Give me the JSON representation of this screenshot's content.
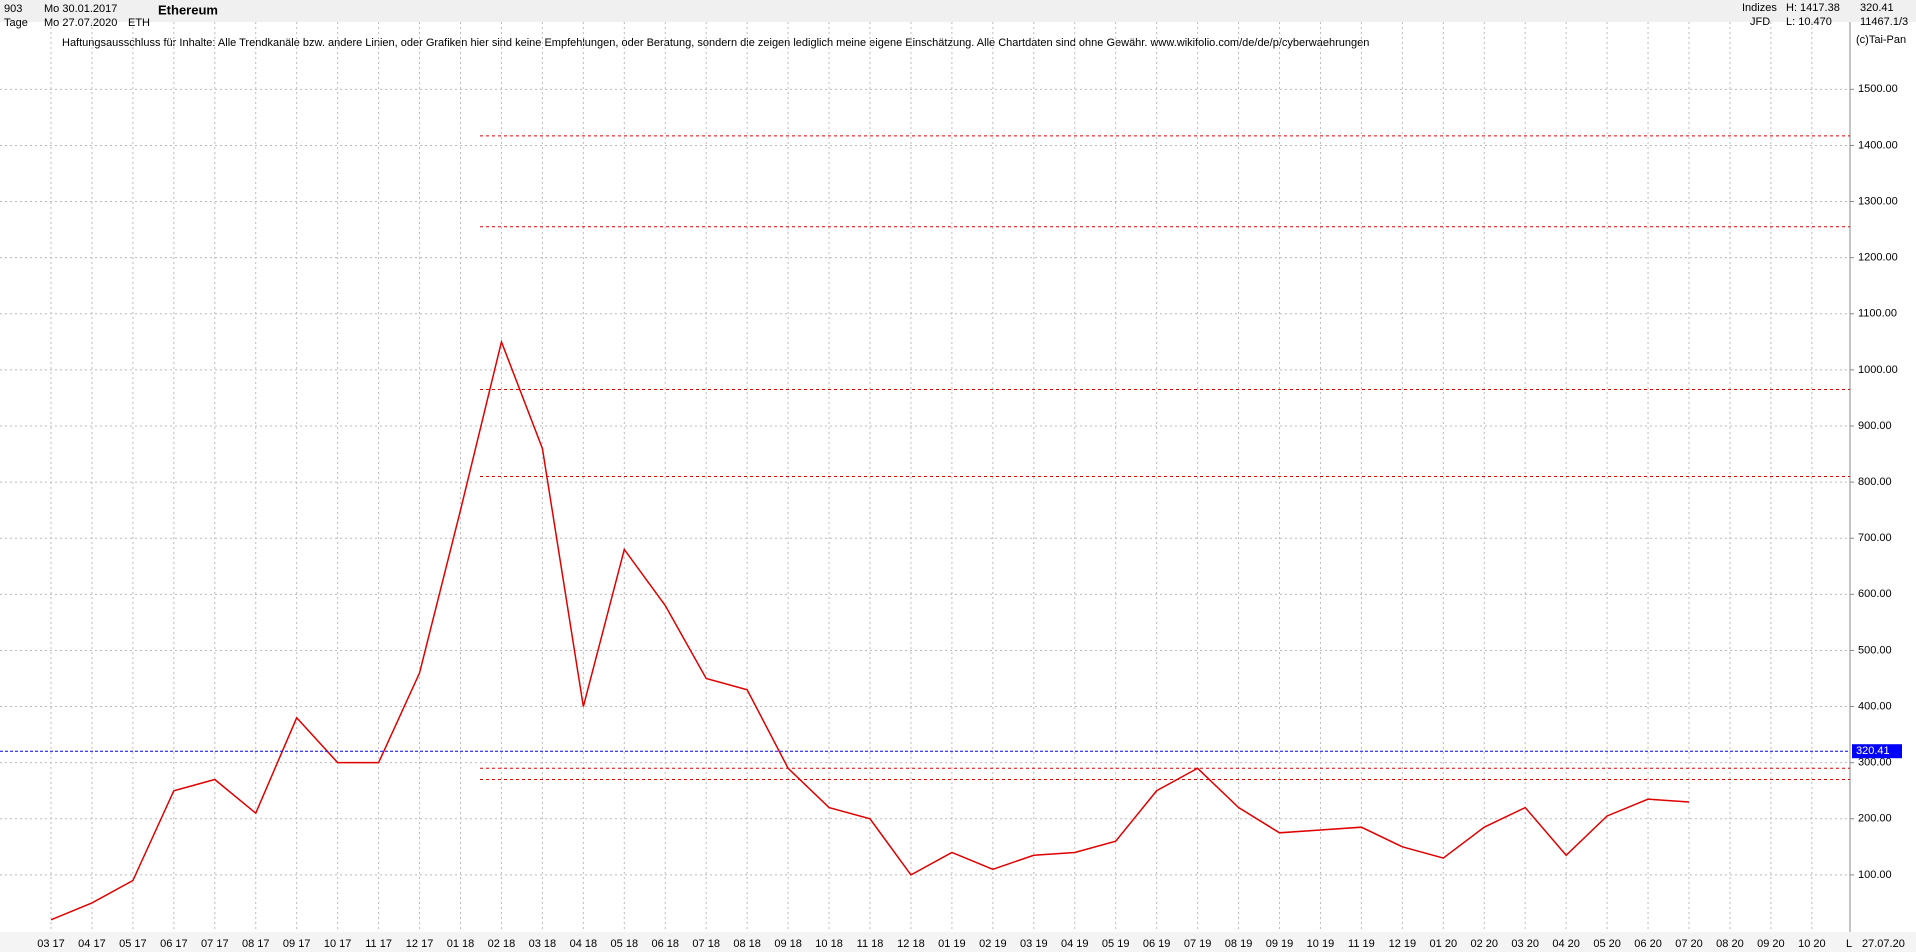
{
  "chart_data": {
    "type": "line",
    "title": "Ethereum",
    "header": {
      "period": "903",
      "from": "Mo 30.01.2017",
      "unit": "Tage",
      "to": "Mo 27.07.2020",
      "symbol": "ETH",
      "group": "Indizes",
      "broker": "JFD",
      "high": "H: 1417.38",
      "low": "L: 10.470",
      "last": "320.41",
      "count": "11467.1/3",
      "disclaimer": "Haftungsausschluss für Inhalte: Alle Trendkanäle bzw. andere Linien, oder Grafiken hier sind keine Empfehlungen, oder Beratung, sondern die zeigen lediglich meine eigene Einschätzung. Alle Chartdaten sind ohne Gewähr.  www.wikifolio.com/de/de/p/cyberwaehrungen",
      "copyright": "(c)Tai-Pan",
      "scale_mode": "L",
      "date": "27.07.20"
    },
    "categories": [
      "03 17",
      "04 17",
      "05 17",
      "06 17",
      "07 17",
      "08 17",
      "09 17",
      "10 17",
      "11 17",
      "12 17",
      "01 18",
      "02 18",
      "03 18",
      "04 18",
      "05 18",
      "06 18",
      "07 18",
      "08 18",
      "09 18",
      "10 18",
      "11 18",
      "12 18",
      "01 19",
      "02 19",
      "03 19",
      "04 19",
      "05 19",
      "06 19",
      "07 19",
      "08 19",
      "09 19",
      "10 19",
      "11 19",
      "12 19",
      "01 20",
      "02 20",
      "03 20",
      "04 20",
      "05 20",
      "06 20",
      "07 20",
      "08 20",
      "09 20",
      "10 20"
    ],
    "values": [
      20,
      50,
      90,
      250,
      270,
      210,
      380,
      300,
      300,
      460,
      750,
      1050,
      860,
      400,
      680,
      580,
      450,
      430,
      290,
      220,
      200,
      100,
      140,
      110,
      135,
      140,
      160,
      250,
      290,
      220,
      175,
      180,
      185,
      150,
      130,
      185,
      220,
      135,
      205,
      235,
      230,
      null,
      null,
      null
    ],
    "color": "#e00000",
    "levels": [
      1417,
      1255,
      965,
      810,
      290,
      270
    ],
    "level_color": "#e00000",
    "last_price": 320.41,
    "last_color": "#0000ff",
    "ylim": [
      0,
      1620
    ],
    "yticks": [
      {
        "value": 100,
        "label": "100.00"
      },
      {
        "value": 200,
        "label": "200.00"
      },
      {
        "value": 300,
        "label": "300.00"
      },
      {
        "value": 400,
        "label": "400.00"
      },
      {
        "value": 500,
        "label": "500.00"
      },
      {
        "value": 600,
        "label": "600.00"
      },
      {
        "value": 700,
        "label": "700.00"
      },
      {
        "value": 800,
        "label": "800.00"
      },
      {
        "value": 900,
        "label": "900.00"
      },
      {
        "value": 1000,
        "label": "1000.00"
      },
      {
        "value": 1100,
        "label": "1100.00"
      },
      {
        "value": 1200,
        "label": "1200.00"
      },
      {
        "value": 1300,
        "label": "1300.00"
      },
      {
        "value": 1400,
        "label": "1400.00"
      },
      {
        "value": 1500,
        "label": "1500.00"
      }
    ],
    "grid": true
  }
}
